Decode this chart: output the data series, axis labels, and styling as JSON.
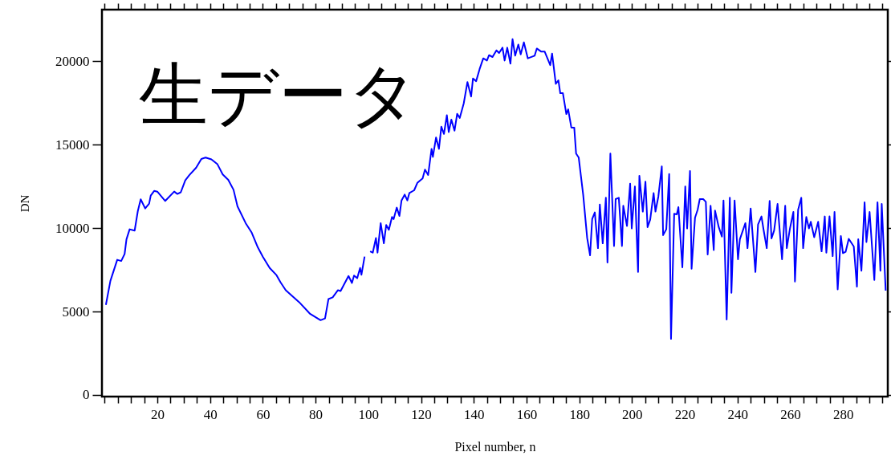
{
  "chart_data": {
    "type": "line",
    "title": "生データ",
    "xlabel": "Pixel number, n",
    "ylabel": "DN",
    "xlim": [
      -1,
      297
    ],
    "ylim": [
      -100,
      23100
    ],
    "xticks": [
      {
        "value": 0,
        "label": null
      },
      {
        "value": 5,
        "label": null
      },
      {
        "value": 10,
        "label": null
      },
      {
        "value": 15,
        "label": null
      },
      20,
      {
        "value": 25,
        "label": null
      },
      {
        "value": 30,
        "label": null
      },
      {
        "value": 35,
        "label": null
      },
      40,
      {
        "value": 45,
        "label": null
      },
      {
        "value": 50,
        "label": null
      },
      {
        "value": 55,
        "label": null
      },
      60,
      {
        "value": 65,
        "label": null
      },
      {
        "value": 70,
        "label": null
      },
      {
        "value": 75,
        "label": null
      },
      80,
      {
        "value": 85,
        "label": null
      },
      {
        "value": 90,
        "label": null
      },
      {
        "value": 95,
        "label": null
      },
      100,
      {
        "value": 105,
        "label": null
      },
      {
        "value": 110,
        "label": null
      },
      {
        "value": 115,
        "label": null
      },
      120,
      {
        "value": 125,
        "label": null
      },
      {
        "value": 130,
        "label": null
      },
      {
        "value": 135,
        "label": null
      },
      140,
      {
        "value": 145,
        "label": null
      },
      {
        "value": 150,
        "label": null
      },
      {
        "value": 155,
        "label": null
      },
      160,
      {
        "value": 165,
        "label": null
      },
      {
        "value": 170,
        "label": null
      },
      {
        "value": 175,
        "label": null
      },
      180,
      {
        "value": 185,
        "label": null
      },
      {
        "value": 190,
        "label": null
      },
      {
        "value": 195,
        "label": null
      },
      200,
      {
        "value": 205,
        "label": null
      },
      {
        "value": 210,
        "label": null
      },
      {
        "value": 215,
        "label": null
      },
      220,
      {
        "value": 225,
        "label": null
      },
      {
        "value": 230,
        "label": null
      },
      {
        "value": 235,
        "label": null
      },
      240,
      {
        "value": 245,
        "label": null
      },
      {
        "value": 250,
        "label": null
      },
      {
        "value": 255,
        "label": null
      },
      260,
      {
        "value": 265,
        "label": null
      },
      {
        "value": 270,
        "label": null
      },
      {
        "value": 275,
        "label": null
      },
      280,
      {
        "value": 285,
        "label": null
      },
      {
        "value": 290,
        "label": null
      },
      {
        "value": 295,
        "label": null
      }
    ],
    "yticks": [
      0,
      5000,
      10000,
      15000,
      20000
    ],
    "grid": false,
    "marker": "none",
    "line_style": "solid",
    "series": [
      {
        "color": "#0000ff",
        "x": [
          0.5,
          2.2,
          4.8,
          6.3,
          7.6,
          8.3,
          9.5,
          11.4,
          12.6,
          13.7,
          15.4,
          16.9,
          17.5,
          18.8,
          20,
          23,
          26.4,
          27.6,
          28.9,
          30.6,
          32.2,
          34.7,
          36.7,
          38.3,
          40.5,
          42.8,
          44.8,
          46.9,
          48.9,
          50.4,
          53.5,
          55.8,
          58.1,
          60,
          62.6,
          65.1,
          66.7,
          68.7,
          73.8,
          77.8,
          81.9,
          83.6,
          84.9,
          86.5,
          88.5,
          89.5,
          92.5,
          93.8,
          94.6,
          95.8,
          96.9,
          97.4,
          98.6,
          99.6,
          100.7,
          101.7,
          102.9,
          103.5,
          104.7,
          105.9,
          106.8,
          107.8,
          109,
          109.6,
          110.8,
          111.8,
          112.6,
          113.8,
          114.8,
          115.6,
          117.4,
          118.6,
          120.6,
          121.5,
          122.7,
          124,
          124.5,
          125.7,
          126.8,
          127.7,
          128.7,
          129.8,
          130.5,
          131.5,
          132.7,
          133.7,
          134.7,
          136.2,
          137.6,
          139,
          139.7,
          140.9,
          142.2,
          143.6,
          145,
          145.8,
          147.1,
          148.6,
          149.6,
          150.9,
          151.7,
          152.7,
          153.9,
          154.7,
          155.7,
          156.9,
          157.8,
          159,
          160.5,
          163.1,
          163.9,
          165.6,
          166.9,
          169,
          169.7,
          171.1,
          172.1,
          172.8,
          173.8,
          175.1,
          175.8,
          177,
          178.1,
          178.8,
          179.8,
          181.5,
          183,
          184.1,
          184.9,
          185.9,
          187.1,
          187.8,
          188.9,
          190.1,
          190.7,
          191.8,
          193.2,
          193.8,
          195,
          196.2,
          196.7,
          198.1,
          199.3,
          199.9,
          201.1,
          202.3,
          202.8,
          204.1,
          205.1,
          205.9,
          206.9,
          208.2,
          208.9,
          210,
          211.3,
          211.8,
          213,
          214.1,
          214.8,
          216,
          217,
          217.6,
          219.1,
          220.2,
          220.9,
          222,
          222.6,
          223.9,
          224.9,
          225.7,
          227,
          228,
          228.7,
          229.8,
          231,
          231.5,
          232.9,
          234.1,
          234.7,
          235.9,
          237.1,
          237.7,
          238.9,
          240.2,
          240.9,
          243,
          243.8,
          245,
          246.8,
          247.8,
          249.1,
          249.9,
          251.1,
          252.2,
          252.9,
          253.9,
          255.2,
          256.9,
          258.1,
          258.7,
          259.9,
          261.2,
          261.8,
          263,
          264.2,
          264.9,
          266.1,
          267.1,
          267.8,
          269.1,
          270.6,
          271.9,
          273.1,
          273.7,
          274.9,
          276.1,
          276.8,
          278,
          279.2,
          280,
          281,
          282.2,
          284.1,
          285.3,
          285.8,
          287,
          288.2,
          288.9,
          290.1,
          291.9,
          293.1,
          294.2,
          294.7,
          296.2
        ],
        "values": [
          5400,
          6840,
          8100,
          8030,
          8450,
          9330,
          9930,
          9850,
          11020,
          11730,
          11180,
          11470,
          11950,
          12230,
          12190,
          11630,
          12190,
          12050,
          12150,
          12870,
          13190,
          13620,
          14150,
          14230,
          14120,
          13830,
          13220,
          12900,
          12300,
          11310,
          10300,
          9730,
          8850,
          8290,
          7610,
          7200,
          6760,
          6280,
          5560,
          4880,
          4480,
          4590,
          5750,
          5850,
          6280,
          6230,
          7130,
          6710,
          7160,
          7000,
          7610,
          7200,
          8290,
          null,
          8610,
          8530,
          9410,
          8530,
          10300,
          9090,
          10190,
          9900,
          10670,
          10540,
          11230,
          10730,
          11660,
          12010,
          11660,
          12110,
          12270,
          12710,
          12980,
          13510,
          13190,
          14750,
          14270,
          15440,
          14750,
          16080,
          15650,
          16770,
          15760,
          16510,
          15840,
          16850,
          16610,
          17480,
          18760,
          17890,
          18970,
          18810,
          19530,
          20180,
          20050,
          20370,
          20260,
          20660,
          20500,
          20820,
          20050,
          20820,
          19860,
          21330,
          20340,
          21010,
          20420,
          21140,
          20180,
          20340,
          20770,
          20580,
          20580,
          19770,
          20470,
          18650,
          18860,
          18090,
          18090,
          16840,
          17120,
          16030,
          16030,
          14470,
          14230,
          11990,
          9410,
          8370,
          10540,
          10940,
          8800,
          11420,
          9090,
          11820,
          7940,
          14470,
          8930,
          11740,
          11820,
          8930,
          11340,
          10130,
          12670,
          9980,
          12500,
          7370,
          13140,
          10990,
          12790,
          10060,
          10510,
          12100,
          10990,
          11900,
          13700,
          9580,
          9930,
          13240,
          3360,
          10860,
          10830,
          11260,
          7650,
          12500,
          9980,
          13430,
          7570,
          10620,
          11100,
          11740,
          11740,
          11580,
          8420,
          11340,
          8690,
          11050,
          10060,
          9490,
          11660,
          4520,
          11820,
          6120,
          11660,
          8130,
          9330,
          10300,
          8800,
          11180,
          7370,
          10220,
          10700,
          9900,
          8800,
          11630,
          9380,
          9860,
          11450,
          8130,
          11340,
          8800,
          9980,
          10970,
          6800,
          11100,
          11820,
          8800,
          10670,
          9980,
          10380,
          9450,
          10380,
          8610,
          10700,
          8530,
          10700,
          8320,
          10970,
          6330,
          9530,
          8500,
          8580,
          9360,
          8900,
          6490,
          9330,
          7450,
          11550,
          9170,
          10970,
          6890,
          11550,
          7450,
          11450,
          6250
        ]
      }
    ]
  }
}
